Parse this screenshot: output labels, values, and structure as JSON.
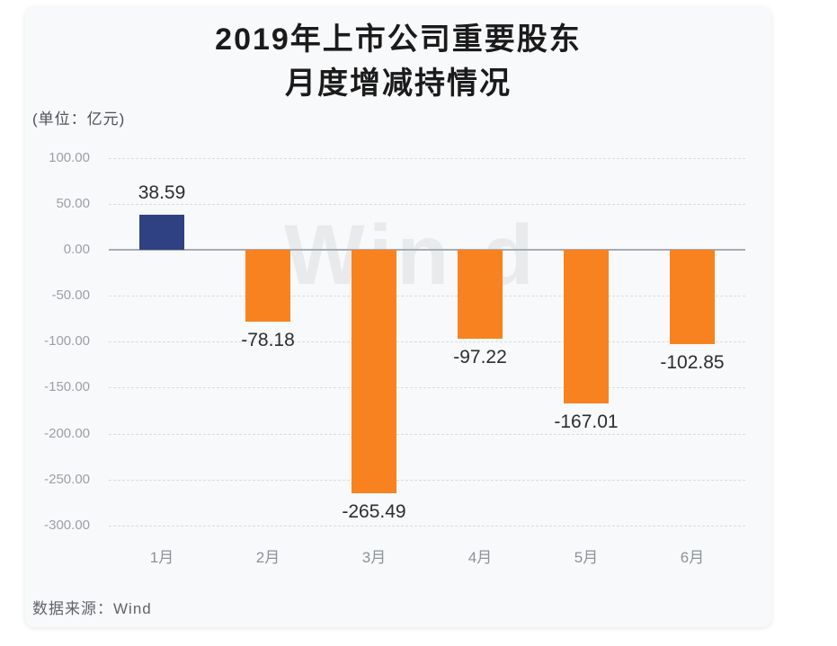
{
  "page": {
    "title_line1": "2019年上市公司重要股东",
    "title_line2": "月度增减持情况",
    "unit_label": "(单位：亿元)",
    "source_label": "数据来源：Wind",
    "watermark": "Win.d"
  },
  "colors": {
    "positive_bar": "#2F4083",
    "negative_bar": "#F8821F",
    "card_background": "#F8F9FB",
    "grid_line": "#D9DCE0",
    "zero_line": "#A6ACB4",
    "tick_text": "#9BA0A6",
    "value_text": "#2D2D2D",
    "watermark_text": "#E8EAEC"
  },
  "chart_data": {
    "type": "bar",
    "title": "2019年上市公司重要股东月度增减持情况",
    "subtitle_unit": "亿元",
    "categories": [
      "1月",
      "2月",
      "3月",
      "4月",
      "5月",
      "6月"
    ],
    "values": [
      38.59,
      -78.18,
      -265.49,
      -97.22,
      -167.01,
      -102.85
    ],
    "value_labels": [
      "38.59",
      "-78.18",
      "-265.49",
      "-97.22",
      "-167.01",
      "-102.85"
    ],
    "bar_colors": [
      "#2F4083",
      "#F8821F",
      "#F8821F",
      "#F8821F",
      "#F8821F",
      "#F8821F"
    ],
    "xlabel": "",
    "ylabel": "亿元",
    "ylim": [
      -300,
      100
    ],
    "yticks": [
      100,
      50,
      0,
      -50,
      -100,
      -150,
      -200,
      -250,
      -300
    ],
    "ytick_labels": [
      "100.00",
      "50.00",
      "0.00",
      "-50.00",
      "-100.00",
      "-150.00",
      "-200.00",
      "-250.00",
      "-300.00"
    ],
    "grid": "horizontal-dashed",
    "zero_line": "solid",
    "legend": "none"
  }
}
